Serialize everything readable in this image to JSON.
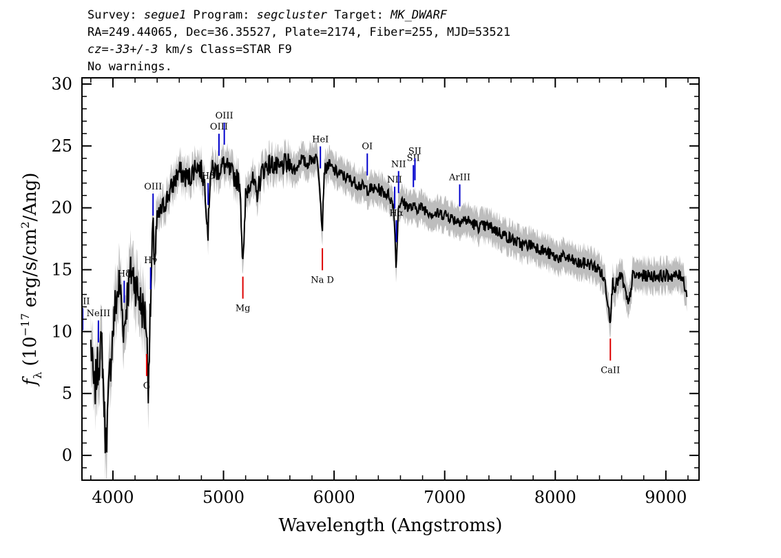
{
  "header": {
    "line1": {
      "a": "Survey: ",
      "b": "segue1",
      "c": " Program: ",
      "d": "segcluster",
      "e": " Target: ",
      "f": "MK_DWARF"
    },
    "line2": "RA=249.44065, Dec=36.35527, Plate=2174, Fiber=255, MJD=53521",
    "line3": {
      "a": "cz=-33+/-3",
      "b": " km/s Class=STAR F9"
    },
    "line4": "No warnings."
  },
  "colors": {
    "spectrum": "#000000",
    "error_band": "#bdbdbd",
    "emission_marker": "#0000cc",
    "absorption_marker": "#dd0000"
  },
  "chart_data": {
    "type": "line",
    "xlabel": "Wavelength (Angstroms)",
    "ylabel": "f_λ (10^-17 erg/s/cm^2/Ang)",
    "ylabel_parts": {
      "f": "f",
      "lam": "λ",
      "open": " (10",
      "exp1": "−17",
      "mid": " erg/s/cm",
      "exp2": "2",
      "close": "/Ang)"
    },
    "xlim": [
      3720,
      9300
    ],
    "ylim": [
      -2,
      30.5
    ],
    "xticks": [
      4000,
      5000,
      6000,
      7000,
      8000,
      9000
    ],
    "yticks": [
      0,
      5,
      10,
      15,
      20,
      25,
      30
    ],
    "series": [
      {
        "x": [
          3800,
          3830,
          3860,
          3900,
          3933,
          3945,
          3968,
          3990,
          4020,
          4060,
          4101,
          4130,
          4170,
          4200,
          4230,
          4260,
          4300,
          4320,
          4340,
          4360,
          4380,
          4400,
          4450,
          4500,
          4550,
          4600,
          4650,
          4700,
          4750,
          4800,
          4830,
          4861,
          4880,
          4900,
          4950,
          5000,
          5050,
          5100,
          5150,
          5172,
          5183,
          5200,
          5250,
          5300,
          5350,
          5400,
          5450,
          5500,
          5550,
          5600,
          5650,
          5700,
          5750,
          5800,
          5850,
          5870,
          5893,
          5910,
          5950,
          6000,
          6100,
          6200,
          6300,
          6400,
          6500,
          6540,
          6563,
          6580,
          6600,
          6700,
          6800,
          6900,
          7000,
          7100,
          7200,
          7300,
          7400,
          7500,
          7600,
          7700,
          7800,
          7900,
          8000,
          8100,
          8200,
          8300,
          8400,
          8450,
          8498,
          8520,
          8542,
          8560,
          8600,
          8662,
          8700,
          8800,
          8900,
          9000,
          9100,
          9150,
          9190
        ],
        "y": [
          9,
          5,
          7,
          9,
          1,
          2,
          6,
          9,
          12,
          14,
          10,
          13,
          15,
          14,
          13,
          12,
          11,
          6,
          12,
          18,
          16,
          19,
          20,
          21,
          22,
          23,
          22.5,
          22.5,
          23.5,
          23,
          22,
          18,
          23,
          23,
          23,
          23.5,
          23,
          22.5,
          22,
          16,
          16,
          21,
          22.5,
          21,
          23,
          23.5,
          23.5,
          23,
          23.5,
          23.5,
          23,
          24,
          23.5,
          24,
          24,
          22,
          18,
          23,
          23.5,
          23,
          22.5,
          22,
          21.5,
          21.5,
          21,
          20,
          15,
          20,
          20.5,
          20,
          20,
          19.5,
          19.5,
          19,
          19,
          18.5,
          18.5,
          18,
          17.5,
          17,
          17,
          16.5,
          16,
          16,
          15.5,
          15.5,
          15,
          14,
          11,
          14,
          13.5,
          14,
          14.5,
          12,
          14.5,
          14.5,
          14.5,
          14.5,
          14.5,
          14.5,
          13
        ]
      }
    ],
    "emission_lines": [
      {
        "label": "OII",
        "wave": 3727
      },
      {
        "label": "NeIII",
        "wave": 3869
      },
      {
        "label": "Hδ",
        "wave": 4102
      },
      {
        "label": "Hγ",
        "wave": 4341
      },
      {
        "label": "OIII",
        "wave": 4363
      },
      {
        "label": "Hβ",
        "wave": 4861
      },
      {
        "label": "OIII",
        "wave": 4959
      },
      {
        "label": "OIII",
        "wave": 5007
      },
      {
        "label": "HeI",
        "wave": 5876
      },
      {
        "label": "OI",
        "wave": 6300
      },
      {
        "label": "NII",
        "wave": 6548
      },
      {
        "label": "Hα",
        "wave": 6563
      },
      {
        "label": "NII",
        "wave": 6583
      },
      {
        "label": "SII",
        "wave": 6717
      },
      {
        "label": "SII",
        "wave": 6731
      },
      {
        "label": "ArIII",
        "wave": 7136
      }
    ],
    "absorption_lines": [
      {
        "label": "G",
        "wave": 4305
      },
      {
        "label": "Mg",
        "wave": 5175
      },
      {
        "label": "Na D",
        "wave": 5894
      },
      {
        "label": "CaII",
        "wave": 8498
      }
    ]
  }
}
